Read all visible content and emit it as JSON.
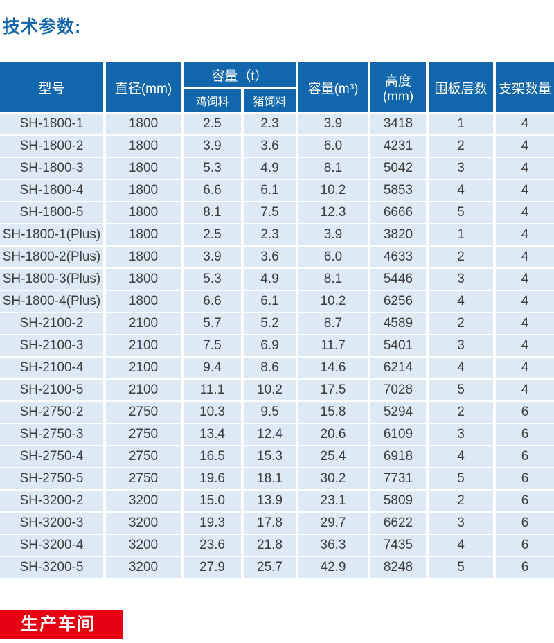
{
  "title": "技术参数:",
  "table": {
    "headers": {
      "model": "型号",
      "diameter": "直径(mm)",
      "capacity_t": "容量（t）",
      "chicken_feed": "鸡饲料",
      "pig_feed": "猪饲料",
      "capacity_m3": "容量(m³)",
      "height": "高度(mm)",
      "panel_layers": "围板层数",
      "bracket_count": "支架数量"
    },
    "rows": [
      [
        "SH-1800-1",
        "1800",
        "2.5",
        "2.3",
        "3.9",
        "3418",
        "1",
        "4"
      ],
      [
        "SH-1800-2",
        "1800",
        "3.9",
        "3.6",
        "6.0",
        "4231",
        "2",
        "4"
      ],
      [
        "SH-1800-3",
        "1800",
        "5.3",
        "4.9",
        "8.1",
        "5042",
        "3",
        "4"
      ],
      [
        "SH-1800-4",
        "1800",
        "6.6",
        "6.1",
        "10.2",
        "5853",
        "4",
        "4"
      ],
      [
        "SH-1800-5",
        "1800",
        "8.1",
        "7.5",
        "12.3",
        "6666",
        "5",
        "4"
      ],
      [
        "SH-1800-1(Plus)",
        "1800",
        "2.5",
        "2.3",
        "3.9",
        "3820",
        "1",
        "4"
      ],
      [
        "SH-1800-2(Plus)",
        "1800",
        "3.9",
        "3.6",
        "6.0",
        "4633",
        "2",
        "4"
      ],
      [
        "SH-1800-3(Plus)",
        "1800",
        "5.3",
        "4.9",
        "8.1",
        "5446",
        "3",
        "4"
      ],
      [
        "SH-1800-4(Plus)",
        "1800",
        "6.6",
        "6.1",
        "10.2",
        "6256",
        "4",
        "4"
      ],
      [
        "SH-2100-2",
        "2100",
        "5.7",
        "5.2",
        "8.7",
        "4589",
        "2",
        "4"
      ],
      [
        "SH-2100-3",
        "2100",
        "7.5",
        "6.9",
        "11.7",
        "5401",
        "3",
        "4"
      ],
      [
        "SH-2100-4",
        "2100",
        "9.4",
        "8.6",
        "14.6",
        "6214",
        "4",
        "4"
      ],
      [
        "SH-2100-5",
        "2100",
        "11.1",
        "10.2",
        "17.5",
        "7028",
        "5",
        "4"
      ],
      [
        "SH-2750-2",
        "2750",
        "10.3",
        "9.5",
        "15.8",
        "5294",
        "2",
        "6"
      ],
      [
        "SH-2750-3",
        "2750",
        "13.4",
        "12.4",
        "20.6",
        "6109",
        "3",
        "6"
      ],
      [
        "SH-2750-4",
        "2750",
        "16.5",
        "15.3",
        "25.4",
        "6918",
        "4",
        "6"
      ],
      [
        "SH-2750-5",
        "2750",
        "19.6",
        "18.1",
        "30.2",
        "7731",
        "5",
        "6"
      ],
      [
        "SH-3200-2",
        "3200",
        "15.0",
        "13.9",
        "23.1",
        "5809",
        "2",
        "6"
      ],
      [
        "SH-3200-3",
        "3200",
        "19.3",
        "17.8",
        "29.7",
        "6622",
        "3",
        "6"
      ],
      [
        "SH-3200-4",
        "3200",
        "23.6",
        "21.8",
        "36.3",
        "7435",
        "4",
        "6"
      ],
      [
        "SH-3200-5",
        "3200",
        "27.9",
        "25.7",
        "42.9",
        "8248",
        "5",
        "6"
      ]
    ]
  },
  "footer_badge": {
    "label": "生产车间"
  },
  "colors": {
    "header_blue": "#1266ac",
    "row_blue": "#ddeaf6",
    "title_blue": "#1565ad",
    "badge_red": "#e60012",
    "text_dark": "#3c3c3c"
  }
}
